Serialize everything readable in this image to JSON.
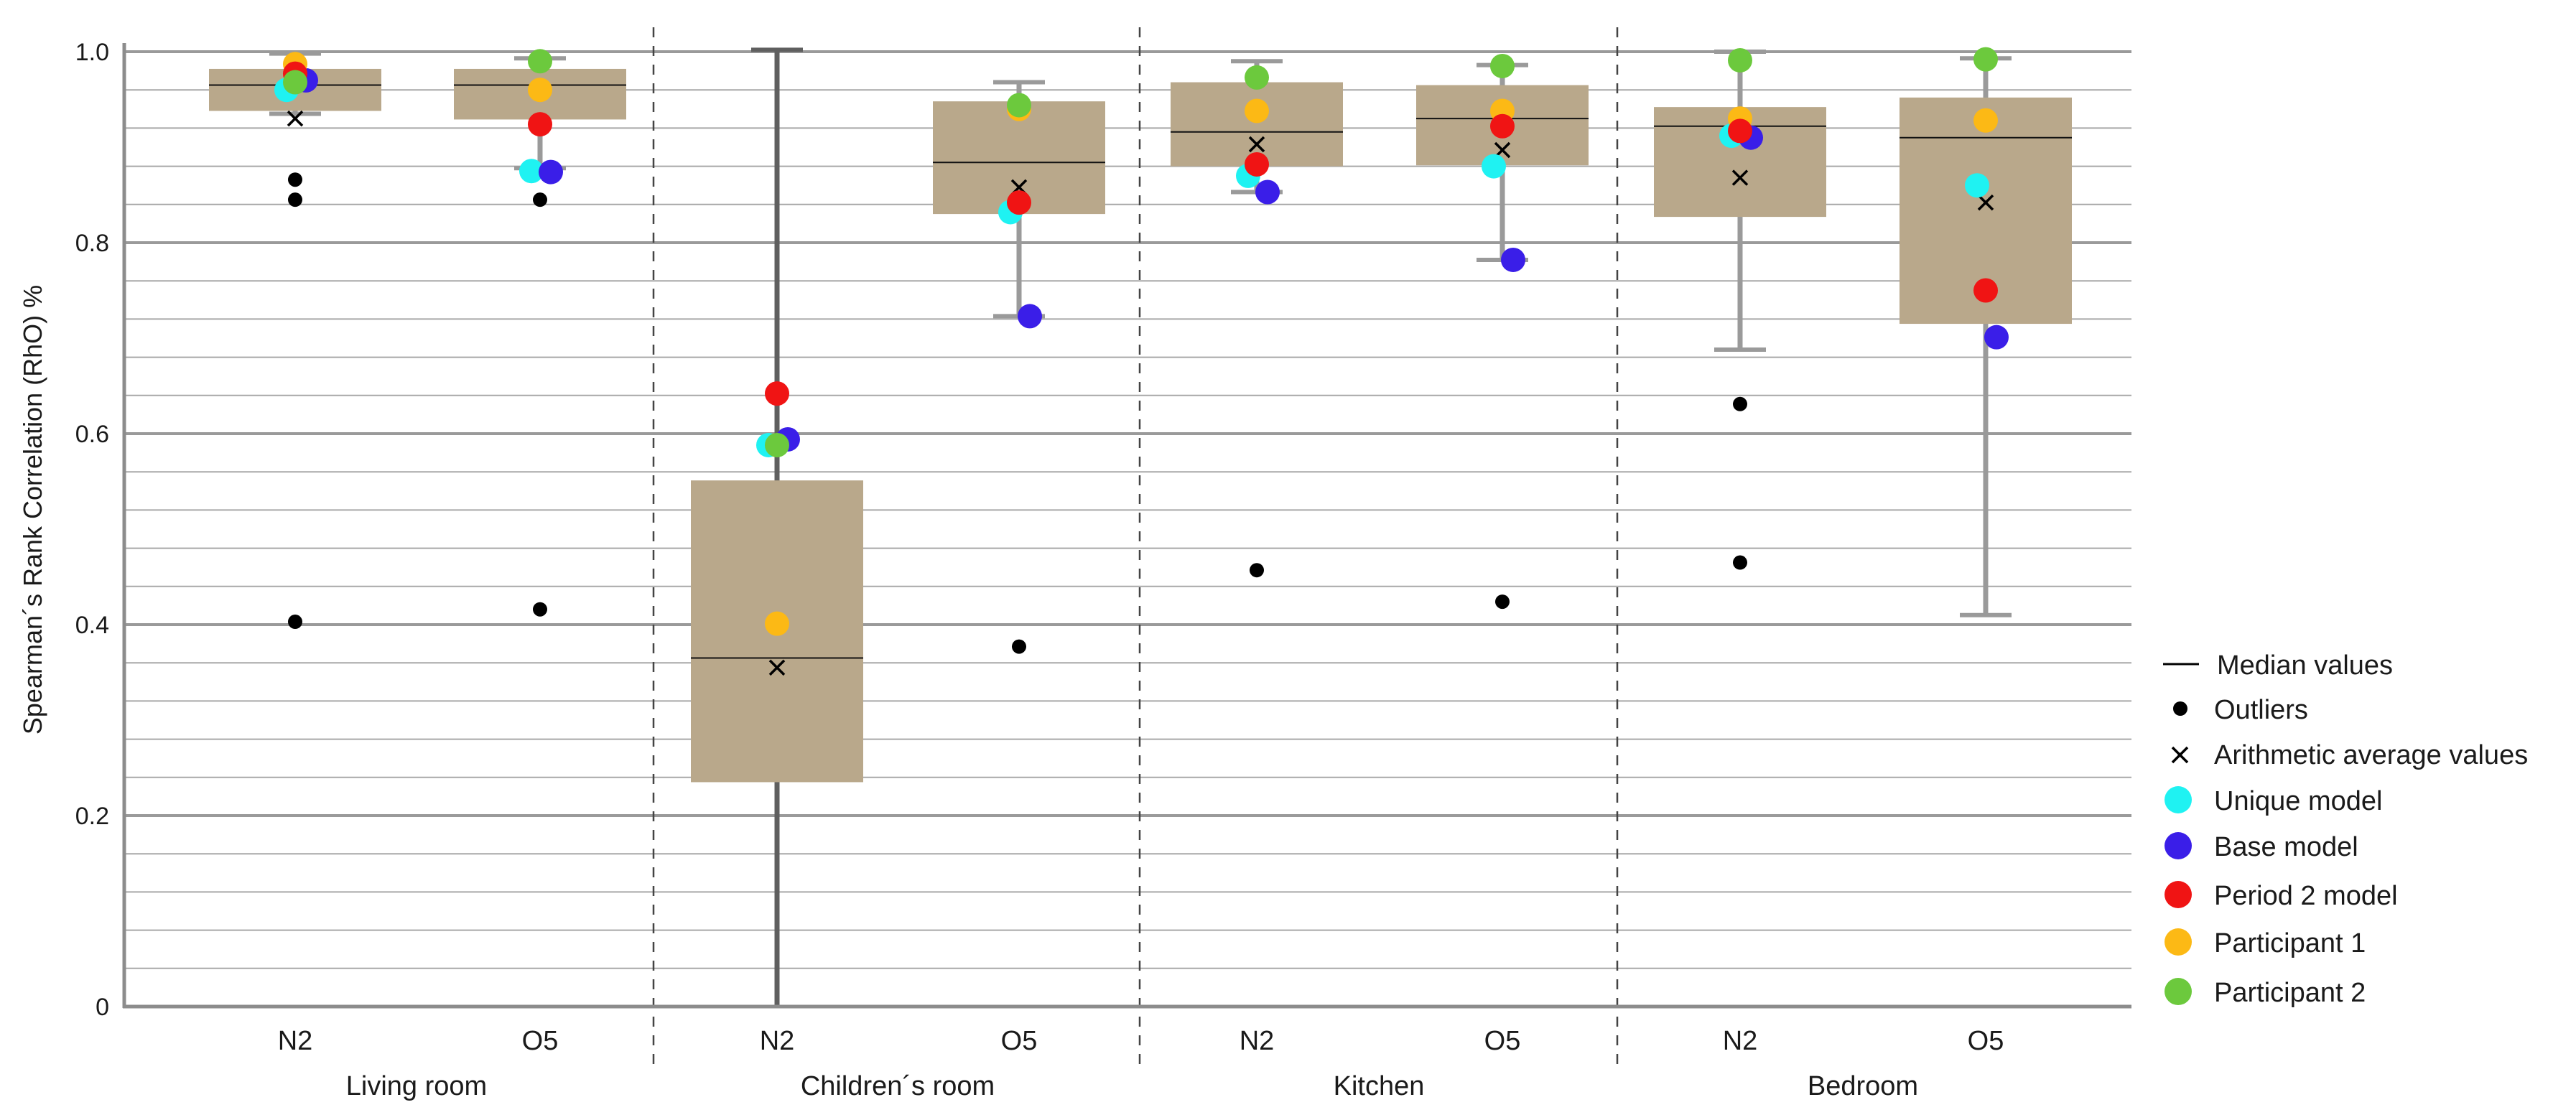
{
  "chart_data": {
    "type": "box",
    "ylabel": "Spearman´s Rank Correlation (RhO) %",
    "ylim": [
      0,
      1.0
    ],
    "yticks": [
      "0",
      "0.2",
      "0.4",
      "0.6",
      "0.8",
      "1.0"
    ],
    "groups": [
      "Living room",
      "Children´s room",
      "Kitchen",
      "Bedroom"
    ],
    "categories": [
      "N2",
      "O5",
      "N2",
      "O5",
      "N2",
      "O5",
      "N2",
      "O5"
    ],
    "boxes": [
      {
        "group": "Living room",
        "label": "N2",
        "q1": 0.938,
        "median": 0.965,
        "q3": 0.982,
        "whisker_low": 0.935,
        "whisker_high": 0.998,
        "mean": 0.93,
        "outliers": [
          0.866,
          0.845,
          0.403
        ],
        "points": {
          "unique": 0.96,
          "base": 0.97,
          "period2": 0.977,
          "participant1": 0.987,
          "participant2": 0.968
        }
      },
      {
        "group": "Living room",
        "label": "O5",
        "q1": 0.929,
        "median": 0.965,
        "q3": 0.982,
        "whisker_low": 0.878,
        "whisker_high": 0.993,
        "mean": 0.925,
        "outliers": [
          0.845,
          0.416
        ],
        "points": {
          "unique": 0.875,
          "base": 0.874,
          "period2": 0.924,
          "participant1": 0.96,
          "participant2": 0.99
        }
      },
      {
        "group": "Children´s room",
        "label": "N2",
        "q1": 0.235,
        "median": 0.365,
        "q3": 0.551,
        "whisker_low": 0.0,
        "whisker_high": 1.002,
        "mean": 0.355,
        "outliers": [],
        "points": {
          "unique": 0.588,
          "base": 0.594,
          "period2": 0.642,
          "participant1": 0.401,
          "participant2": 0.588
        }
      },
      {
        "group": "Children´s room",
        "label": "O5",
        "q1": 0.83,
        "median": 0.884,
        "q3": 0.948,
        "whisker_low": 0.723,
        "whisker_high": 0.968,
        "mean": 0.858,
        "outliers": [
          0.377
        ],
        "points": {
          "unique": 0.832,
          "base": 0.723,
          "period2": 0.842,
          "participant1": 0.94,
          "participant2": 0.944
        }
      },
      {
        "group": "Kitchen",
        "label": "N2",
        "q1": 0.88,
        "median": 0.916,
        "q3": 0.968,
        "whisker_low": 0.853,
        "whisker_high": 0.99,
        "mean": 0.903,
        "outliers": [
          0.457
        ],
        "points": {
          "unique": 0.87,
          "base": 0.853,
          "period2": 0.882,
          "participant1": 0.938,
          "participant2": 0.973
        }
      },
      {
        "group": "Kitchen",
        "label": "O5",
        "q1": 0.881,
        "median": 0.93,
        "q3": 0.965,
        "whisker_low": 0.782,
        "whisker_high": 0.986,
        "mean": 0.897,
        "outliers": [
          0.424
        ],
        "points": {
          "unique": 0.88,
          "base": 0.782,
          "period2": 0.922,
          "participant1": 0.938,
          "participant2": 0.985
        }
      },
      {
        "group": "Bedroom",
        "label": "N2",
        "q1": 0.827,
        "median": 0.922,
        "q3": 0.942,
        "whisker_low": 0.688,
        "whisker_high": 1.0,
        "mean": 0.868,
        "outliers": [
          0.631,
          0.465
        ],
        "points": {
          "unique": 0.912,
          "base": 0.91,
          "period2": 0.917,
          "participant1": 0.93,
          "participant2": 0.991
        }
      },
      {
        "group": "Bedroom",
        "label": "O5",
        "q1": 0.715,
        "median": 0.91,
        "q3": 0.952,
        "whisker_low": 0.41,
        "whisker_high": 0.993,
        "mean": 0.842,
        "outliers": [],
        "points": {
          "unique": 0.86,
          "base": 0.701,
          "period2": 0.75,
          "participant1": 0.928,
          "participant2": 0.992
        }
      }
    ],
    "legend": {
      "median": "Median values",
      "outliers": "Outliers",
      "mean": "Arithmetic average values",
      "unique": "Unique model",
      "base": "Base model",
      "period2": "Period 2 model",
      "participant1": "Participant 1",
      "participant2": "Participant 2"
    },
    "legend_position": "right",
    "colors": {
      "box_fill": "#b9a88b",
      "unique": "#1ff2f2",
      "base": "#3a1ee8",
      "period2": "#f01414",
      "participant1": "#fcb915",
      "participant2": "#6cc93d",
      "grid": "#9a9a9a",
      "whisker": "#5f5f5f"
    }
  }
}
